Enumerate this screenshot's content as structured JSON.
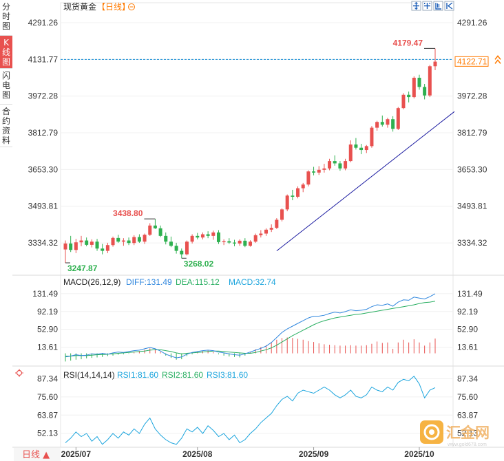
{
  "sidebar": {
    "tabs": [
      {
        "label": "分时图",
        "active": false
      },
      {
        "label": "K线图",
        "active": true
      },
      {
        "label": "闪电图",
        "active": false
      },
      {
        "label": "合约资料",
        "active": false
      }
    ]
  },
  "header": {
    "title": "现货黄金",
    "period": "【日线】",
    "period_switch_icon": "circle-minus-icon",
    "toolbar_icons": [
      "expand-icon",
      "crosshair-icon",
      "line-tool-icon",
      "line-tool-icon",
      "play-icon"
    ]
  },
  "colors": {
    "up": "#e8514f",
    "down": "#2eb04f",
    "diff": "#2e86de",
    "dea": "#27ae60",
    "rsi": "#1aa4dd",
    "trend": "#1a1aa0",
    "price_line": "#1a8fd6",
    "accent": "#ff7a00"
  },
  "bottom": {
    "period_button": "日线 ▲",
    "watermark": "汇金网",
    "watermark_sub": "www.gold678.com"
  },
  "chart_data": [
    {
      "type": "candlestick",
      "title": "现货黄金 【日线】",
      "y_ticks": [
        "4291.26",
        "4131.77",
        "3972.28",
        "3812.79",
        "3653.30",
        "3493.81",
        "3334.32"
      ],
      "ylim": [
        3230,
        4330
      ],
      "x_labels": [
        "2025/07",
        "2025/08",
        "2025/09",
        "2025/10"
      ],
      "current_price": "4122.71",
      "current_price_value": 4122.71,
      "annotations": [
        {
          "text": "4179.47",
          "value": 4179.47,
          "kind": "high"
        },
        {
          "text": "3438.80",
          "value": 3438.8,
          "kind": "high"
        },
        {
          "text": "3268.02",
          "value": 3268.02,
          "kind": "low"
        },
        {
          "text": "3247.87",
          "value": 3247.87,
          "kind": "low"
        }
      ],
      "trendline": {
        "from": 3300,
        "to": 3905
      },
      "candles": [
        [
          3306,
          3345,
          3248,
          3332
        ],
        [
          3332,
          3365,
          3295,
          3304
        ],
        [
          3304,
          3352,
          3290,
          3337
        ],
        [
          3337,
          3365,
          3320,
          3345
        ],
        [
          3345,
          3358,
          3320,
          3326
        ],
        [
          3326,
          3350,
          3315,
          3340
        ],
        [
          3340,
          3352,
          3300,
          3310
        ],
        [
          3310,
          3330,
          3285,
          3300
        ],
        [
          3300,
          3335,
          3290,
          3325
        ],
        [
          3325,
          3362,
          3318,
          3356
        ],
        [
          3356,
          3370,
          3335,
          3340
        ],
        [
          3340,
          3355,
          3322,
          3345
        ],
        [
          3345,
          3358,
          3325,
          3334
        ],
        [
          3334,
          3368,
          3325,
          3360
        ],
        [
          3360,
          3372,
          3335,
          3340
        ],
        [
          3340,
          3375,
          3330,
          3370
        ],
        [
          3370,
          3420,
          3365,
          3410
        ],
        [
          3410,
          3439,
          3395,
          3398
        ],
        [
          3398,
          3410,
          3360,
          3365
        ],
        [
          3365,
          3380,
          3328,
          3340
        ],
        [
          3340,
          3362,
          3316,
          3322
        ],
        [
          3322,
          3335,
          3288,
          3300
        ],
        [
          3300,
          3310,
          3268,
          3285
        ],
        [
          3285,
          3345,
          3280,
          3340
        ],
        [
          3340,
          3372,
          3332,
          3365
        ],
        [
          3365,
          3378,
          3350,
          3358
        ],
        [
          3358,
          3380,
          3350,
          3372
        ],
        [
          3372,
          3385,
          3355,
          3365
        ],
        [
          3365,
          3388,
          3348,
          3380
        ],
        [
          3380,
          3390,
          3330,
          3338
        ],
        [
          3338,
          3350,
          3325,
          3342
        ],
        [
          3342,
          3355,
          3330,
          3336
        ],
        [
          3336,
          3348,
          3320,
          3332
        ],
        [
          3332,
          3350,
          3322,
          3344
        ],
        [
          3344,
          3355,
          3316,
          3322
        ],
        [
          3322,
          3346,
          3318,
          3340
        ],
        [
          3340,
          3375,
          3335,
          3368
        ],
        [
          3368,
          3390,
          3358,
          3375
        ],
        [
          3375,
          3398,
          3365,
          3392
        ],
        [
          3392,
          3415,
          3382,
          3400
        ],
        [
          3400,
          3442,
          3395,
          3435
        ],
        [
          3435,
          3485,
          3428,
          3480
        ],
        [
          3480,
          3545,
          3472,
          3540
        ],
        [
          3540,
          3565,
          3520,
          3535
        ],
        [
          3535,
          3580,
          3528,
          3572
        ],
        [
          3572,
          3595,
          3555,
          3588
        ],
        [
          3588,
          3650,
          3580,
          3645
        ],
        [
          3645,
          3665,
          3628,
          3640
        ],
        [
          3640,
          3668,
          3630,
          3652
        ],
        [
          3652,
          3678,
          3640,
          3658
        ],
        [
          3658,
          3700,
          3650,
          3690
        ],
        [
          3690,
          3715,
          3670,
          3680
        ],
        [
          3680,
          3690,
          3648,
          3658
        ],
        [
          3658,
          3700,
          3650,
          3690
        ],
        [
          3690,
          3780,
          3685,
          3762
        ],
        [
          3762,
          3790,
          3740,
          3748
        ],
        [
          3748,
          3765,
          3720,
          3738
        ],
        [
          3738,
          3760,
          3725,
          3755
        ],
        [
          3755,
          3842,
          3748,
          3835
        ],
        [
          3835,
          3865,
          3822,
          3860
        ],
        [
          3860,
          3888,
          3840,
          3848
        ],
        [
          3848,
          3878,
          3835,
          3872
        ],
        [
          3872,
          3885,
          3818,
          3830
        ],
        [
          3830,
          3925,
          3825,
          3920
        ],
        [
          3920,
          3985,
          3915,
          3978
        ],
        [
          3978,
          3992,
          3945,
          3968
        ],
        [
          3968,
          4058,
          3962,
          4052
        ],
        [
          4052,
          4065,
          4000,
          4012
        ],
        [
          4012,
          4025,
          3958,
          3975
        ],
        [
          3975,
          4108,
          3968,
          4102
        ],
        [
          4102,
          4179,
          4085,
          4122
        ]
      ]
    },
    {
      "type": "line",
      "title": "MACD(26,12,9)",
      "legend": [
        {
          "name": "DIFF:131.49",
          "value": 131.49
        },
        {
          "name": "DEA:115.12",
          "value": 115.12
        },
        {
          "name": "MACD:32.74",
          "value": 32.74
        }
      ],
      "y_ticks": [
        "131.49",
        "92.19",
        "52.90",
        "13.61"
      ],
      "ylim": [
        -25,
        145
      ],
      "diff_points": [
        -8,
        -6,
        -3,
        -5,
        -4,
        -1,
        -2,
        0,
        -2,
        1,
        3,
        2,
        4,
        6,
        7,
        10,
        13,
        10,
        5,
        -2,
        -6,
        -10,
        -8,
        -2,
        2,
        4,
        6,
        7,
        6,
        3,
        1,
        -1,
        -3,
        -4,
        -1,
        3,
        7,
        11,
        16,
        24,
        35,
        46,
        54,
        60,
        66,
        72,
        78,
        82,
        82,
        84,
        88,
        91,
        89,
        92,
        96,
        94,
        95,
        97,
        103,
        107,
        106,
        109,
        104,
        113,
        118,
        117,
        124,
        122,
        120,
        125,
        131.49
      ],
      "dea_points": [
        -6,
        -6,
        -5,
        -5,
        -5,
        -4,
        -3,
        -3,
        -2,
        -1,
        0,
        1,
        2,
        3,
        4,
        5,
        7,
        8,
        8,
        6,
        4,
        1,
        -1,
        0,
        1,
        2,
        3,
        4,
        5,
        5,
        4,
        3,
        2,
        1,
        0,
        0,
        2,
        5,
        8,
        12,
        18,
        25,
        32,
        39,
        45,
        51,
        57,
        63,
        68,
        72,
        75,
        78,
        80,
        82,
        84,
        86,
        87,
        89,
        91,
        93,
        95,
        97,
        99,
        101,
        103,
        105,
        107,
        110,
        112,
        113,
        115.12
      ],
      "macd_bars": [
        -18,
        -16,
        -14,
        -13,
        -11,
        -10,
        -9,
        -8,
        -6,
        -5,
        -3,
        -2,
        -1,
        2,
        5,
        8,
        11,
        9,
        3,
        -5,
        -10,
        -14,
        -13,
        -6,
        -2,
        3,
        5,
        6,
        3,
        -2,
        -5,
        -7,
        -8,
        -9,
        -5,
        2,
        9,
        14,
        18,
        24,
        30,
        34,
        35,
        34,
        32,
        30,
        27,
        25,
        22,
        20,
        19,
        18,
        17,
        17,
        18,
        17,
        17,
        18,
        21,
        26,
        23,
        24,
        10,
        24,
        30,
        24,
        31,
        24,
        17,
        24,
        32.74
      ]
    },
    {
      "type": "line",
      "title": "RSI(14,14,14)",
      "legend": [
        {
          "name": "RSI1:81.60",
          "value": 81.6
        },
        {
          "name": "RSI2:81.60",
          "value": 81.6
        },
        {
          "name": "RSI3:81.60",
          "value": 81.6
        }
      ],
      "y_ticks": [
        "87.34",
        "75.60",
        "63.87",
        "52.13"
      ],
      "ylim": [
        44,
        92
      ],
      "rsi_points": [
        46,
        49,
        53,
        50,
        52,
        47,
        50,
        45,
        48,
        52,
        49,
        53,
        51,
        55,
        52,
        58,
        62,
        55,
        51,
        48,
        46,
        45,
        49,
        55,
        53,
        56,
        52,
        57,
        54,
        50,
        52,
        48,
        51,
        46,
        48,
        52,
        55,
        59,
        62,
        65,
        70,
        74,
        76,
        73,
        78,
        80,
        79,
        78,
        80,
        82,
        80,
        77,
        75,
        77,
        80,
        76,
        75,
        77,
        82,
        80,
        79,
        82,
        80,
        85,
        87,
        86,
        89,
        84,
        75,
        80,
        81.6
      ]
    }
  ]
}
